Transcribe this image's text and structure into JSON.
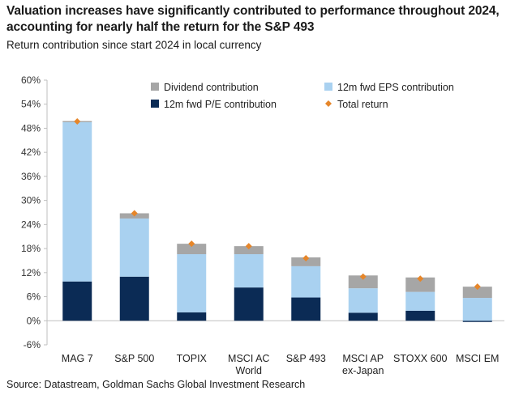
{
  "header": {
    "title": "Valuation increases have significantly contributed to performance throughout 2024, accounting for nearly half the return for the S&P 493",
    "subtitle": "Return contribution since start 2024 in local currency"
  },
  "footer": {
    "source": "Source: Datastream, Goldman Sachs Global Investment Research"
  },
  "colors": {
    "pe": "#0b2b55",
    "eps": "#a9d1f0",
    "dividend": "#a6a6a6",
    "total": "#e6862a",
    "axis": "#bfbfbf"
  },
  "chart_data": {
    "type": "bar",
    "stacked": true,
    "title": "",
    "xlabel": "",
    "ylabel": "",
    "ylim": [
      -6,
      60
    ],
    "yticks": [
      -6,
      0,
      6,
      12,
      18,
      24,
      30,
      36,
      42,
      48,
      54,
      60
    ],
    "ytick_labels": [
      "-6%",
      "0%",
      "6%",
      "12%",
      "18%",
      "24%",
      "30%",
      "36%",
      "42%",
      "48%",
      "54%",
      "60%"
    ],
    "categories": [
      [
        "MAG 7"
      ],
      [
        "S&P 500"
      ],
      [
        "TOPIX"
      ],
      [
        "MSCI AC",
        "World"
      ],
      [
        "S&P 493"
      ],
      [
        "MSCI AP",
        "ex-Japan"
      ],
      [
        "STOXX 600"
      ],
      [
        "MSCI EM"
      ]
    ],
    "series": [
      {
        "name": "12m fwd P/E contribution",
        "key": "pe",
        "values": [
          9.8,
          11.0,
          2.1,
          8.3,
          5.8,
          2.0,
          2.5,
          -0.2
        ]
      },
      {
        "name": "12m fwd EPS contribution",
        "key": "eps",
        "values": [
          39.7,
          14.5,
          14.5,
          8.3,
          7.8,
          6.1,
          4.7,
          5.7
        ]
      },
      {
        "name": "Dividend contribution",
        "key": "dividend",
        "values": [
          0.3,
          1.3,
          2.6,
          2.0,
          2.2,
          3.2,
          3.6,
          2.8
        ]
      }
    ],
    "total_return": {
      "name": "Total return",
      "values": [
        49.7,
        26.8,
        19.2,
        18.6,
        15.6,
        11.0,
        10.5,
        8.5
      ]
    },
    "legend": {
      "position": "top",
      "entries": [
        {
          "label": "Dividend contribution",
          "key": "dividend",
          "marker": "square"
        },
        {
          "label": "12m fwd EPS contribution",
          "key": "eps",
          "marker": "square"
        },
        {
          "label": "12m fwd P/E contribution",
          "key": "pe",
          "marker": "square"
        },
        {
          "label": "Total return",
          "key": "total",
          "marker": "diamond"
        }
      ]
    },
    "grid": false
  }
}
